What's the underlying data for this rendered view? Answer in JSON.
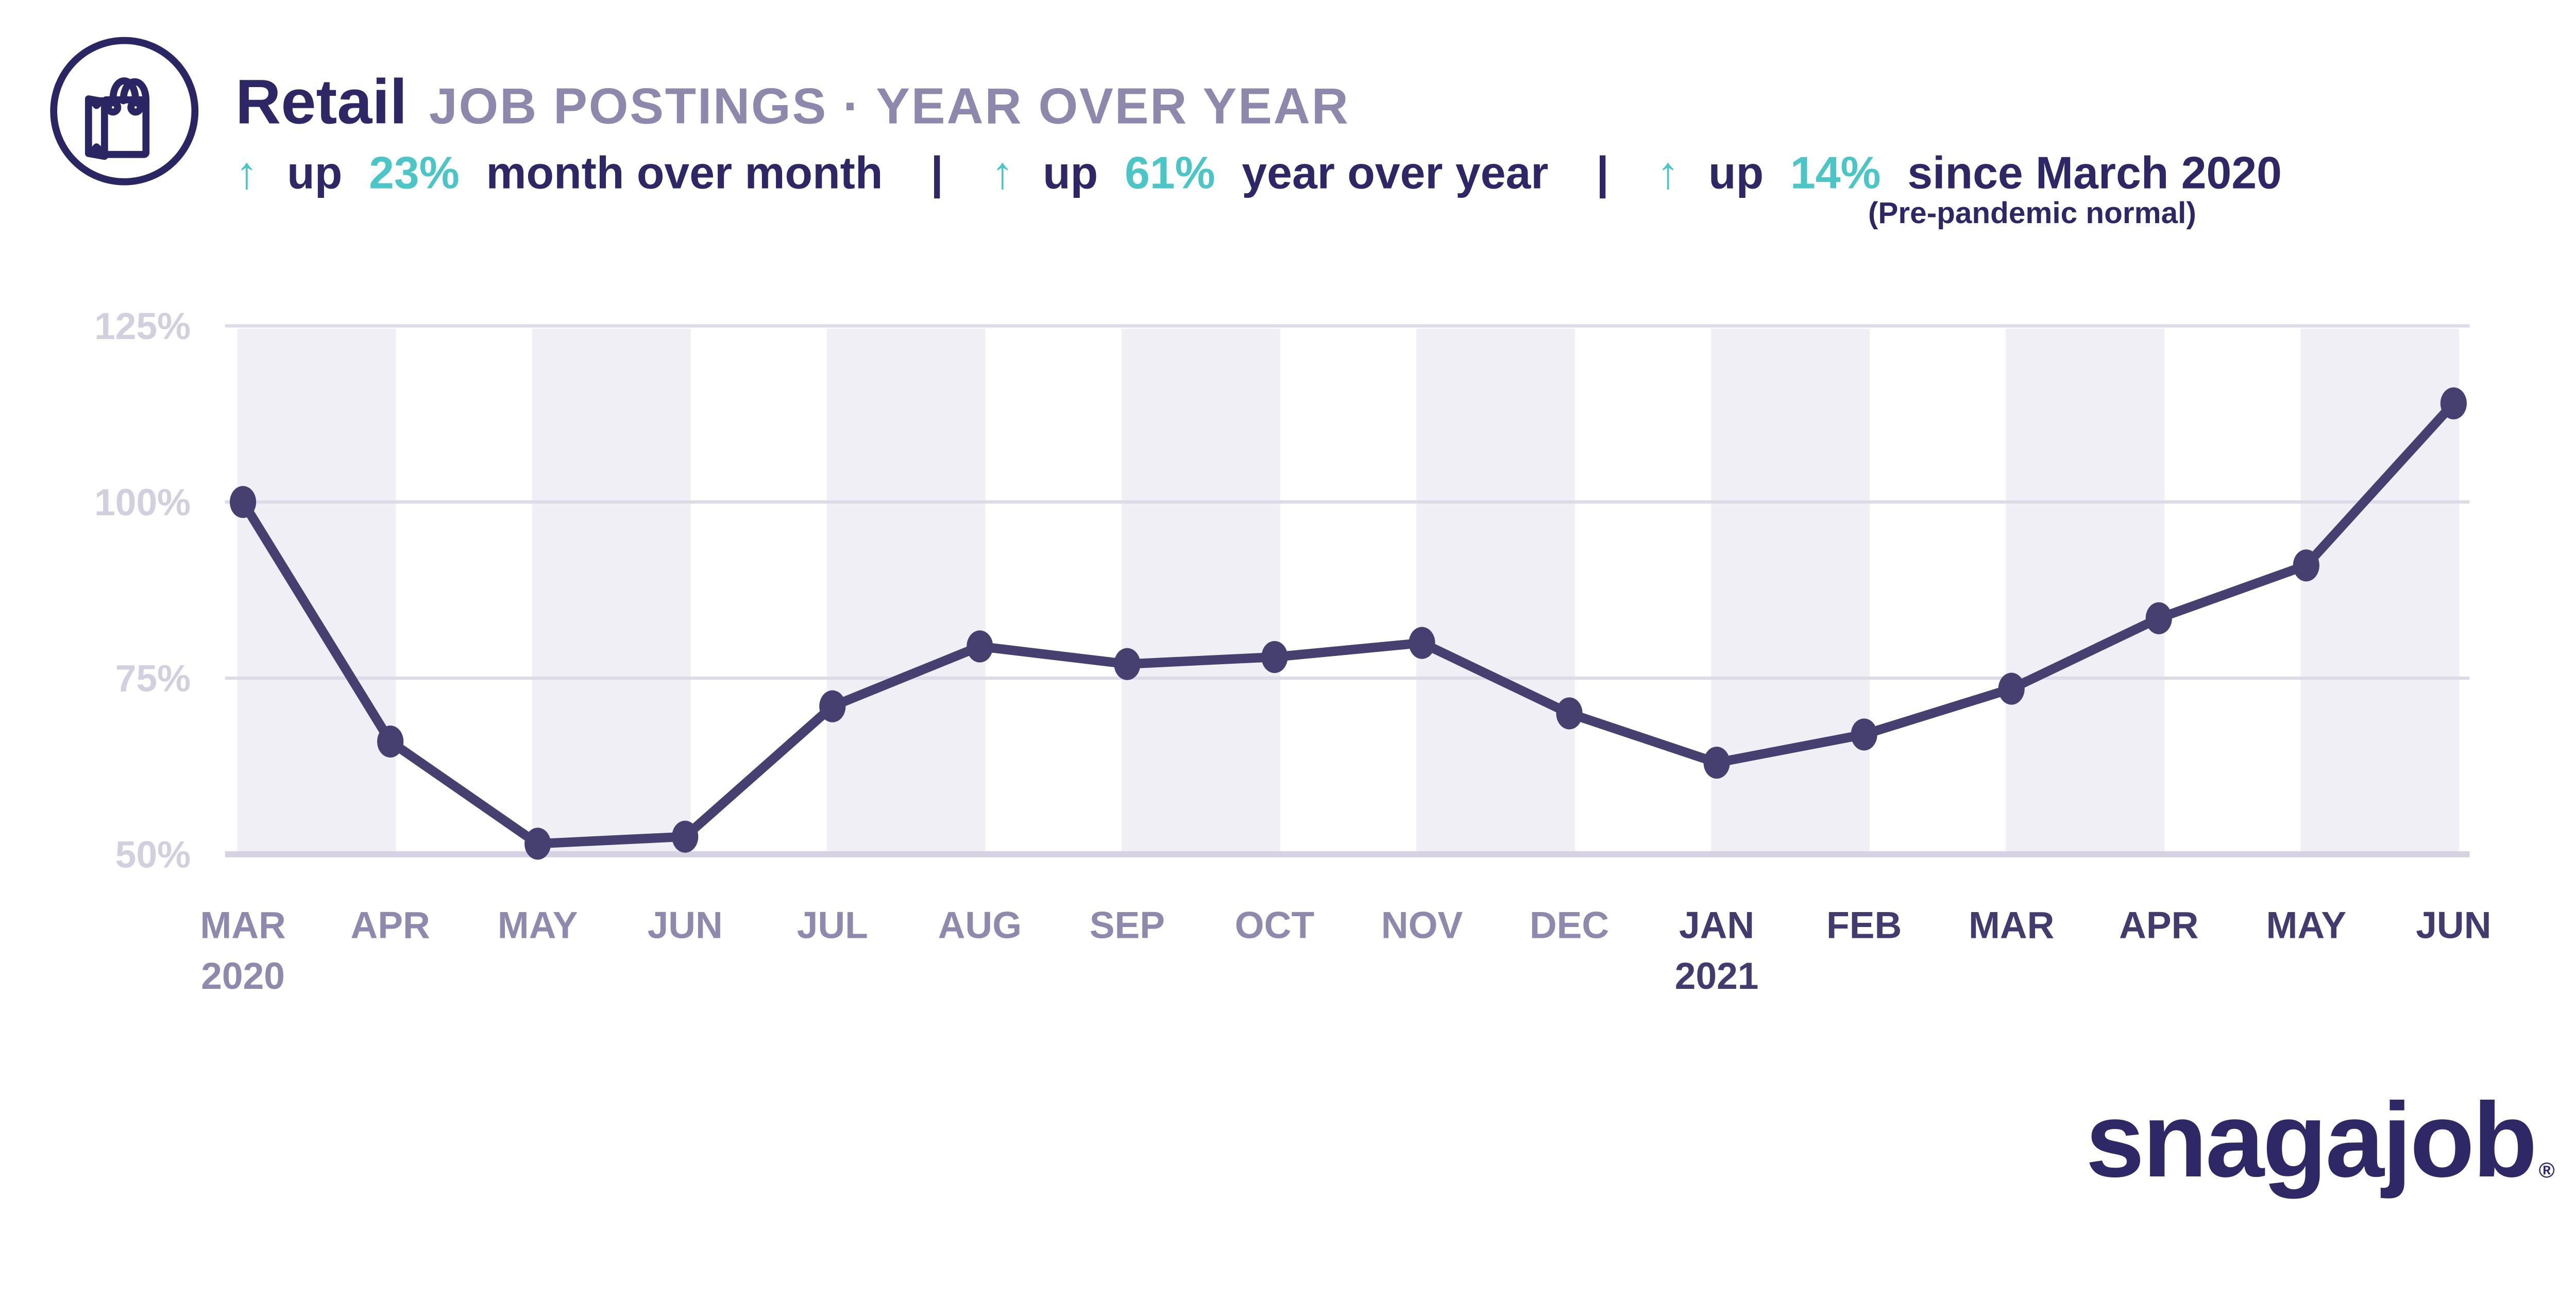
{
  "header": {
    "icon": "shopping-bag-icon",
    "title": "Retail",
    "subtitle": "JOB POSTINGS · YEAR OVER YEAR",
    "separator": "|",
    "stats": [
      {
        "arrow": "↑",
        "prefix": "up",
        "value": "23%",
        "suffix": "month over month"
      },
      {
        "arrow": "↑",
        "prefix": "up",
        "value": "61%",
        "suffix": "year over year"
      },
      {
        "arrow": "↑",
        "prefix": "up",
        "value": "14%",
        "suffix": "since March 2020"
      }
    ],
    "note": "(Pre-pandemic normal)"
  },
  "footer": {
    "logo": "snagajob",
    "registered": "®"
  },
  "colors": {
    "navy_text": "#2d2765",
    "subtitle_grey": "#8e88ad",
    "teal_accent": "#4cc5c6",
    "line": "#464070",
    "grid": "#dedbe8",
    "axis_bottom": "#d6d2e1",
    "band": "#f0eff6",
    "ytick_label": "#d2cfdf",
    "xtick_2020": "#9089ae",
    "xtick_2021": "#413b6e",
    "logo_navy": "#2e2966"
  },
  "chart_data": {
    "type": "line",
    "title": "Retail job postings year over year",
    "xlabel": "",
    "ylabel": "",
    "ylim": [
      45,
      128
    ],
    "yticks": [
      125,
      100,
      75,
      50
    ],
    "ytick_suffix": "%",
    "grid": "horizontal",
    "band_pattern": "alternating month-pair vertical stripes",
    "legend": "none",
    "categories": [
      {
        "label": "MAR",
        "year": 2020
      },
      {
        "label": "APR",
        "year": 2020
      },
      {
        "label": "MAY",
        "year": 2020
      },
      {
        "label": "JUN",
        "year": 2020
      },
      {
        "label": "JUL",
        "year": 2020
      },
      {
        "label": "AUG",
        "year": 2020
      },
      {
        "label": "SEP",
        "year": 2020
      },
      {
        "label": "OCT",
        "year": 2020
      },
      {
        "label": "NOV",
        "year": 2020
      },
      {
        "label": "DEC",
        "year": 2020
      },
      {
        "label": "JAN",
        "year": 2021
      },
      {
        "label": "FEB",
        "year": 2021
      },
      {
        "label": "MAR",
        "year": 2021
      },
      {
        "label": "APR",
        "year": 2021
      },
      {
        "label": "MAY",
        "year": 2021
      },
      {
        "label": "JUN",
        "year": 2021
      }
    ],
    "year_markers": [
      {
        "index": 0,
        "label": "2020"
      },
      {
        "index": 10,
        "label": "2021"
      }
    ],
    "series": [
      {
        "name": "Retail job postings (% of March 2020 baseline)",
        "values": [
          100,
          66,
          51.5,
          52.5,
          71,
          79.5,
          77,
          78,
          80,
          70,
          63,
          67,
          73.5,
          83.5,
          91,
          114
        ]
      }
    ]
  }
}
